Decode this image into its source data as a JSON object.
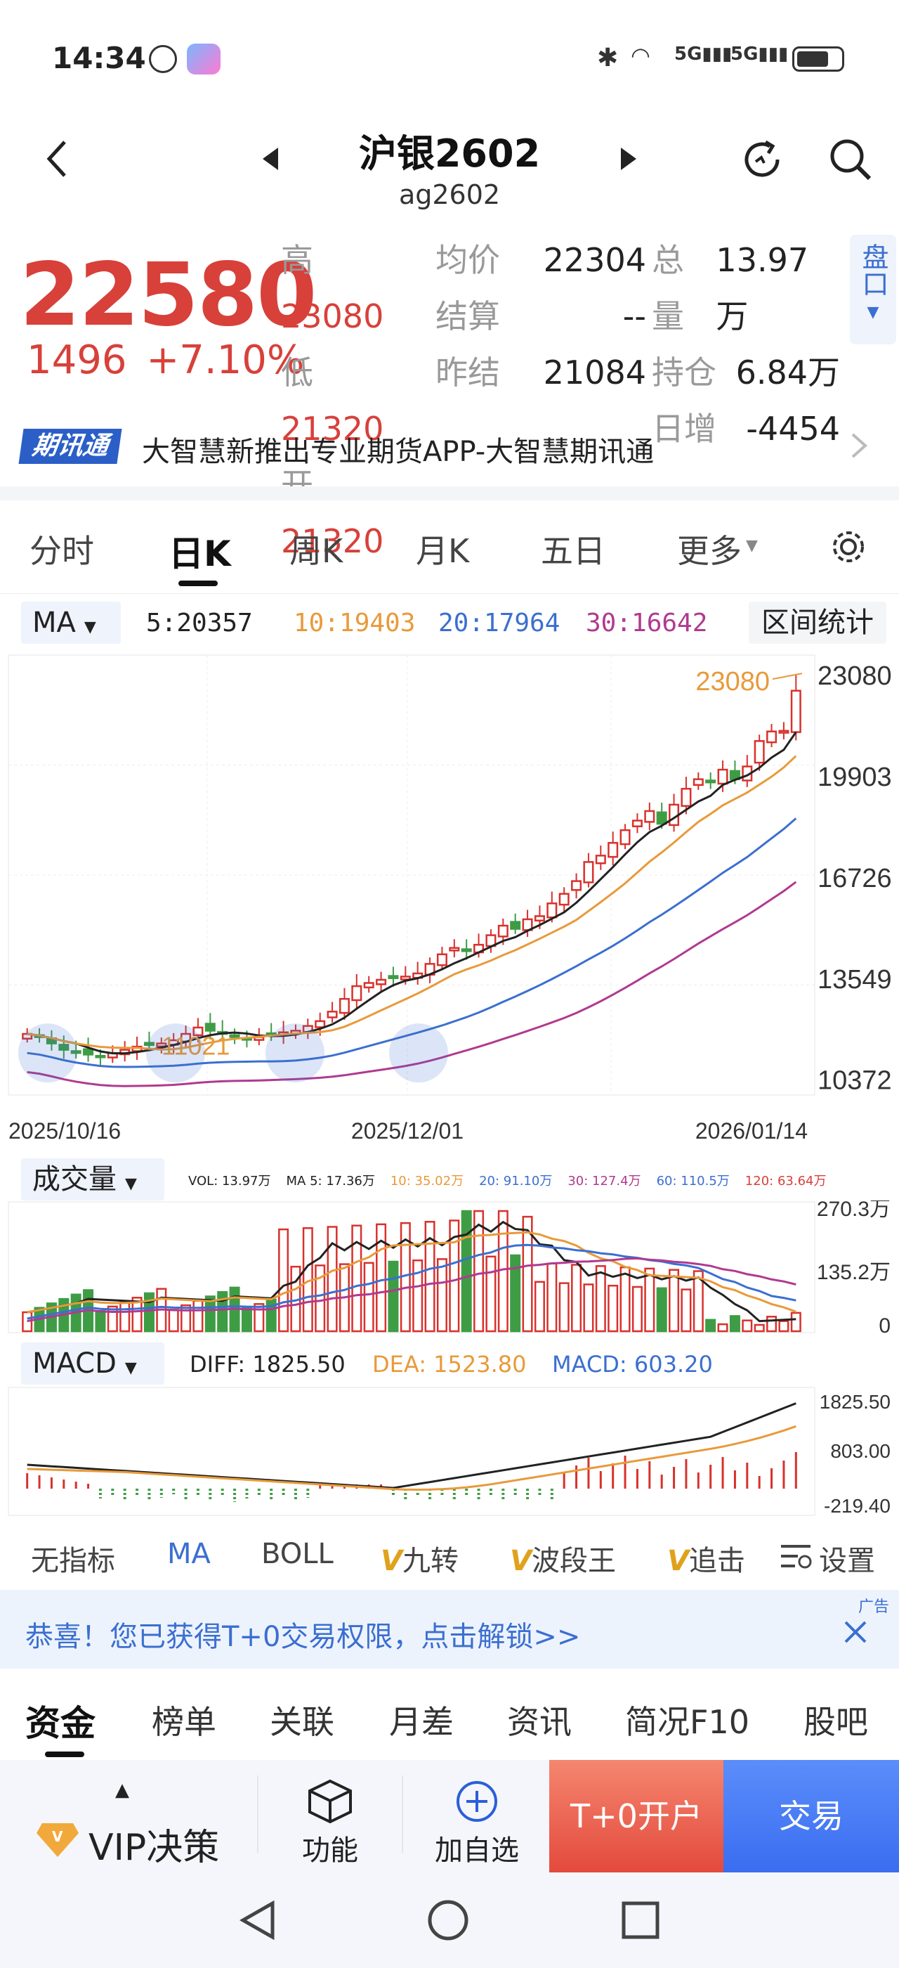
{
  "status": {
    "time": "14:34",
    "battery": "battery-icon"
  },
  "header": {
    "title": "沪银2602",
    "code": "ag2602"
  },
  "quote": {
    "price": "22580",
    "change": "1496",
    "change_pct": "+7.10%",
    "high_lbl": "高",
    "high": "23080",
    "low_lbl": "低",
    "low": "21320",
    "open_lbl": "开",
    "open": "21320",
    "avg_lbl": "均价",
    "avg": "22304",
    "settle_lbl": "结算",
    "settle": "--",
    "prev_lbl": "昨结",
    "prev": "21084",
    "vol_lbl": "总量",
    "vol": "13.97万",
    "oi_lbl": "持仓",
    "oi": "6.84万",
    "daily_lbl": "日增",
    "daily": "-4454",
    "pankou": "盘口"
  },
  "promo": {
    "badge": "期讯通",
    "text": "大智慧新推出专业期货APP-大智慧期讯通"
  },
  "tabs": [
    "分时",
    "日K",
    "周K",
    "月K",
    "五日",
    "更多"
  ],
  "ma_bar": {
    "label": "MA",
    "ma5": "5:20357",
    "ma10": "10:19403",
    "ma20": "20:17964",
    "ma30": "30:16642",
    "stats": "区间统计"
  },
  "kline": {
    "y_ticks": [
      "23080",
      "19903",
      "16726",
      "13549",
      "10372"
    ],
    "x_ticks": [
      "2025/10/16",
      "2025/12/01",
      "2026/01/14"
    ],
    "high_mark": "23080",
    "low_mark": "11021",
    "colors": {
      "up": "#d8312c",
      "down": "#3e9c45",
      "ma5": "#222222",
      "ma10": "#e89a3a",
      "ma20": "#3b6fd0",
      "ma30": "#b03a8f"
    }
  },
  "volume": {
    "label": "成交量",
    "legend": {
      "vol": "VOL: 13.97万",
      "ma5": "MA 5: 17.36万",
      "ma10": "10: 35.02万",
      "ma20": "20: 91.10万",
      "ma30": "30: 127.4万",
      "ma60": "60: 110.5万",
      "ma120": "120: 63.64万"
    },
    "y_ticks": [
      "270.3万",
      "135.2万",
      "0"
    ]
  },
  "macd": {
    "label": "MACD",
    "diff": "DIFF: 1825.50",
    "dea": "DEA: 1523.80",
    "macd": "MACD: 603.20",
    "y_ticks": [
      "1825.50",
      "803.00",
      "-219.40"
    ]
  },
  "indicators": [
    "无指标",
    "MA",
    "BOLL",
    "九转",
    "波段王",
    "追击",
    "设置"
  ],
  "banner": {
    "text": "恭喜！您已获得T+0交易权限，点击解锁>>",
    "ad": "广告"
  },
  "subtabs": [
    "资金",
    "榜单",
    "关联",
    "月差",
    "资讯",
    "简况F10",
    "股吧"
  ],
  "bottom": {
    "vip": "VIP决策",
    "func": "功能",
    "add": "加自选",
    "t0": "T+0开户",
    "trade": "交易"
  }
}
